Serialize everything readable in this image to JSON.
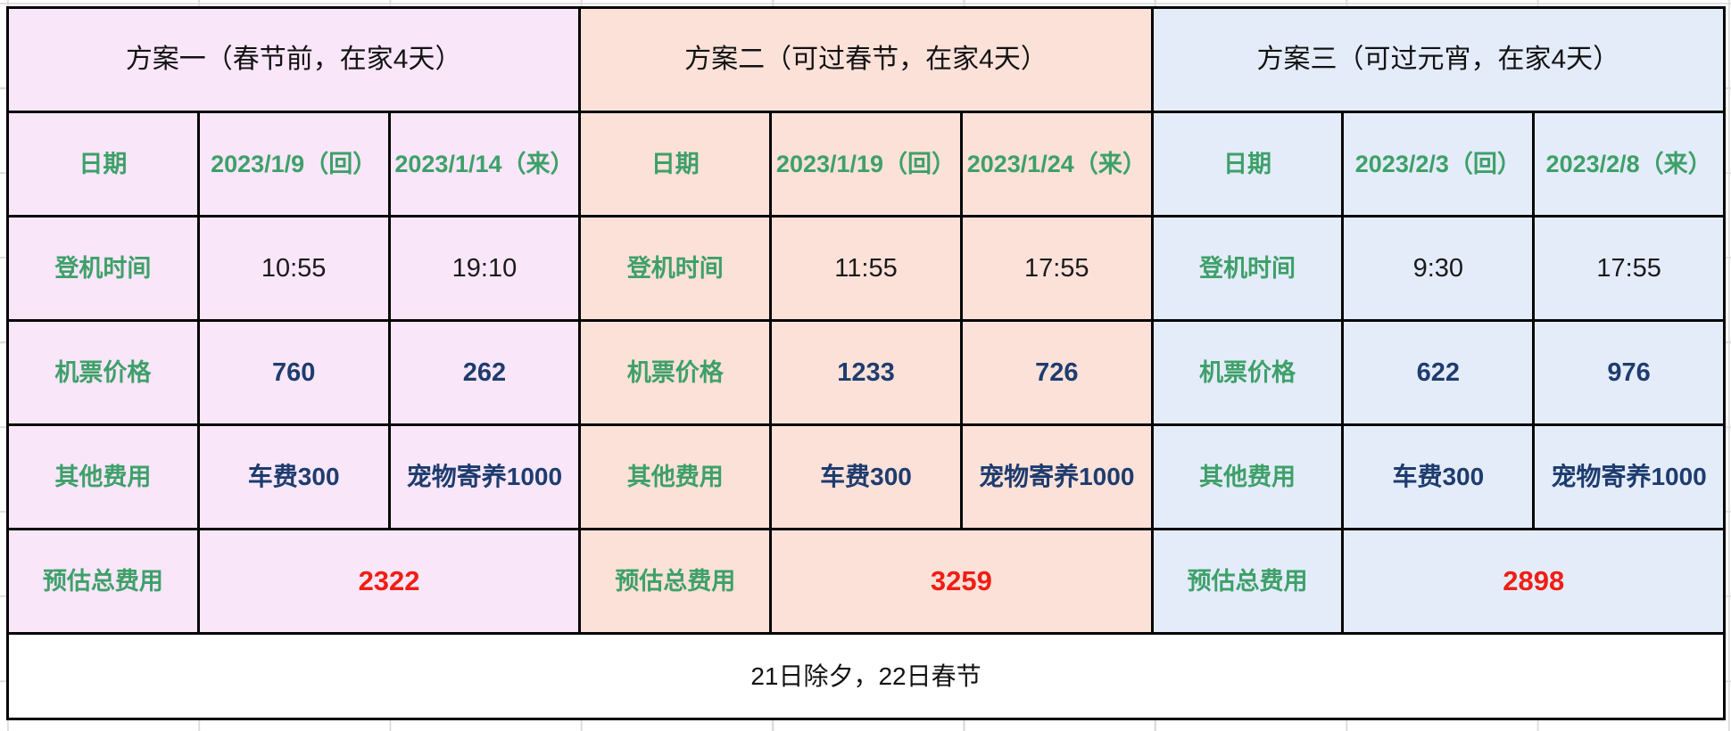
{
  "colors": {
    "plan1-bg": "#f9e6f9",
    "plan2-bg": "#fce1d9",
    "plan3-bg": "#e4ecfa",
    "label-green": "#3ea069",
    "value-navy": "#1e3c6e",
    "total-red": "#f01e14",
    "border-black": "#050505",
    "note-bg": "#ffffff",
    "grid-gray": "#dcdcdc"
  },
  "row_labels": {
    "date": "日期",
    "boarding": "登机时间",
    "price": "机票价格",
    "other": "其他费用",
    "total": "预估总费用"
  },
  "plans": [
    {
      "title": "方案一（春节前，在家4天）",
      "date_back": "2023/1/9（回）",
      "date_return": "2023/1/14（来）",
      "boarding_back": "10:55",
      "boarding_return": "19:10",
      "price_back": "760",
      "price_return": "262",
      "other_back": "车费300",
      "other_return": "宠物寄养1000",
      "total": "2322"
    },
    {
      "title": "方案二（可过春节，在家4天）",
      "date_back": "2023/1/19（回）",
      "date_return": "2023/1/24（来）",
      "boarding_back": "11:55",
      "boarding_return": "17:55",
      "price_back": "1233",
      "price_return": "726",
      "other_back": "车费300",
      "other_return": "宠物寄养1000",
      "total": "3259"
    },
    {
      "title": "方案三（可过元宵，在家4天）",
      "date_back": "2023/2/3（回）",
      "date_return": "2023/2/8（来）",
      "boarding_back": "9:30",
      "boarding_return": "17:55",
      "price_back": "622",
      "price_return": "976",
      "other_back": "车费300",
      "other_return": "宠物寄养1000",
      "total": "2898"
    }
  ],
  "footnote": "21日除夕，22日春节"
}
